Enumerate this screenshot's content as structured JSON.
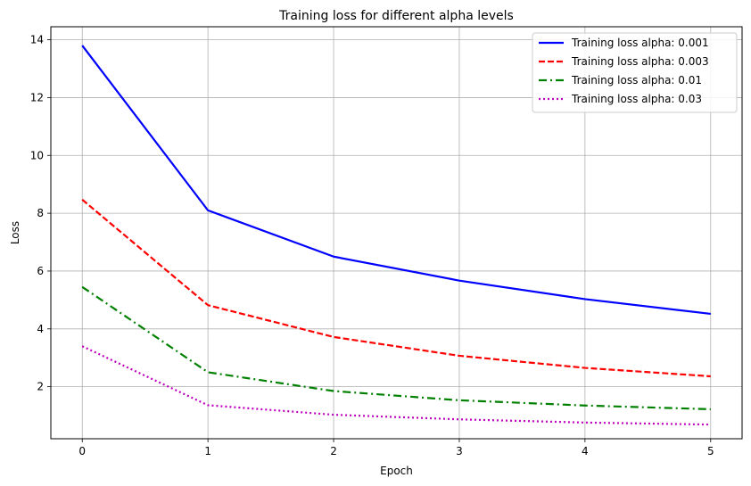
{
  "chart_data": {
    "type": "line",
    "title": "Training loss for different alpha levels",
    "xlabel": "Epoch",
    "ylabel": "Loss",
    "xlim": [
      -0.25,
      5.25
    ],
    "ylim": [
      0.2,
      14.45
    ],
    "xticks": [
      0,
      1,
      2,
      3,
      4,
      5
    ],
    "yticks": [
      2,
      4,
      6,
      8,
      10,
      12,
      14
    ],
    "grid": true,
    "legend_position": "top-right",
    "x": [
      0,
      1,
      2,
      3,
      4,
      5
    ],
    "series": [
      {
        "name": "Training loss alpha: 0.001",
        "color": "#0000ff",
        "style": "solid",
        "values": [
          13.8,
          8.1,
          6.5,
          5.67,
          5.03,
          4.52
        ]
      },
      {
        "name": "Training loss alpha: 0.003",
        "color": "#ff0000",
        "style": "dashed",
        "values": [
          8.47,
          4.82,
          3.72,
          3.07,
          2.65,
          2.36
        ]
      },
      {
        "name": "Training loss alpha: 0.01",
        "color": "#008000",
        "style": "dashdot",
        "values": [
          5.45,
          2.5,
          1.85,
          1.53,
          1.35,
          1.22
        ]
      },
      {
        "name": "Training loss alpha: 0.03",
        "color": "#bf00bf",
        "style": "dotted",
        "values": [
          3.4,
          1.36,
          1.03,
          0.87,
          0.76,
          0.69
        ]
      }
    ]
  }
}
